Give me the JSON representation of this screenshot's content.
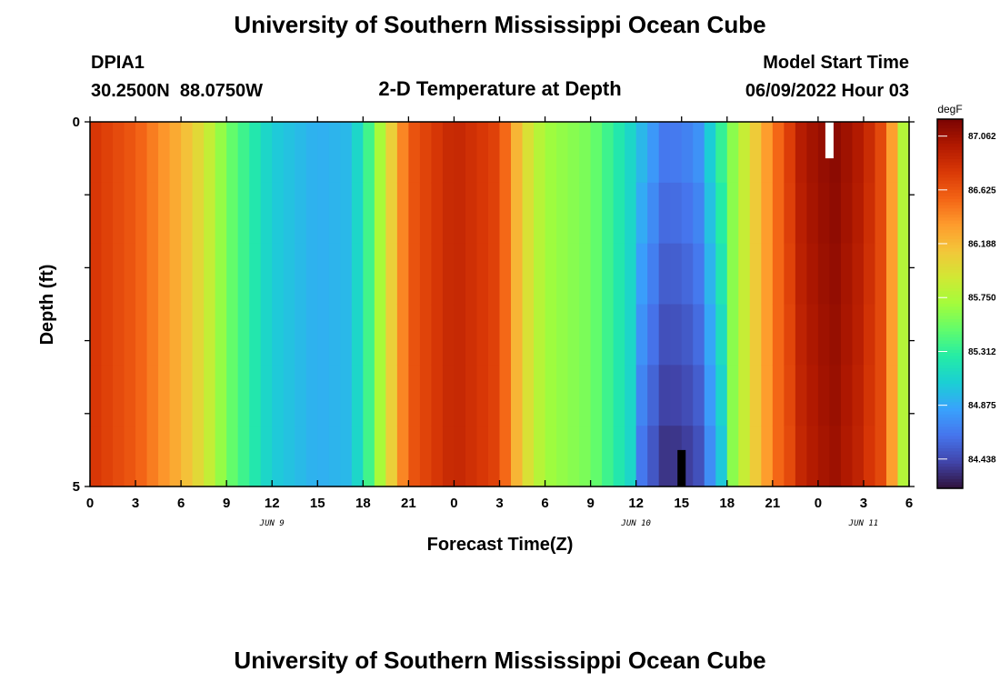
{
  "page": {
    "title": "University of Southern Mississippi Ocean Cube",
    "station_id": "DPIA1",
    "station_coords": "30.2500N  88.0750W",
    "model_start_label": "Model Start Time",
    "model_start_value": "06/09/2022 Hour 03",
    "second_panel_title": "University of Southern Mississippi Ocean Cube"
  },
  "chart_data": {
    "type": "heatmap",
    "title": "2-D Temperature at Depth",
    "xlabel": "Forecast Time(Z)",
    "ylabel": "Depth (ft)",
    "units": "degF",
    "x_hours": [
      0,
      54
    ],
    "y_depth": [
      0,
      5
    ],
    "x_tick_labels": [
      "0",
      "3",
      "6",
      "9",
      "12",
      "15",
      "18",
      "21",
      "0",
      "3",
      "6",
      "9",
      "12",
      "15",
      "18",
      "21",
      "0",
      "3",
      "6"
    ],
    "y_tick_labels": [
      "0",
      "5"
    ],
    "date_labels": [
      {
        "label": "JUN 9",
        "hour": 12
      },
      {
        "label": "JUN 10",
        "hour": 36
      },
      {
        "label": "JUN 11",
        "hour": 51
      }
    ],
    "colorbar": {
      "min": 84.2,
      "max": 87.2,
      "ticks": [
        "87.062",
        "86.625",
        "86.188",
        "85.750",
        "85.312",
        "84.875",
        "84.438"
      ],
      "colors": [
        "#30123b",
        "#4145ab",
        "#4675ed",
        "#39a2fc",
        "#1bcfd4",
        "#24eca6",
        "#61fc6c",
        "#a4fc3b",
        "#d1e834",
        "#f3c63a",
        "#fe9b2d",
        "#f36315",
        "#d93806",
        "#b11901",
        "#7a0402"
      ]
    },
    "surface_profile": [
      [
        0,
        86.8
      ],
      [
        3,
        86.6
      ],
      [
        6,
        86.22
      ],
      [
        7.5,
        85.95
      ],
      [
        9,
        85.55
      ],
      [
        12,
        85.05
      ],
      [
        15,
        84.9
      ],
      [
        17,
        84.95
      ],
      [
        18,
        85.2
      ],
      [
        19.5,
        85.9
      ],
      [
        21,
        86.6
      ],
      [
        24,
        86.9
      ],
      [
        27,
        86.7
      ],
      [
        28.5,
        86.05
      ],
      [
        30,
        85.7
      ],
      [
        33,
        85.55
      ],
      [
        36,
        85.05
      ],
      [
        38,
        84.65
      ],
      [
        40,
        84.75
      ],
      [
        42,
        85.5
      ],
      [
        44.5,
        86.3
      ],
      [
        47,
        87.0
      ],
      [
        49,
        87.15
      ],
      [
        51,
        86.95
      ],
      [
        52.5,
        86.6
      ],
      [
        54,
        85.5
      ]
    ],
    "depth_layers": 6,
    "depth_adjust": {
      "cool_window": {
        "start": 36,
        "end": 42,
        "delta_degF": -0.36
      },
      "warm_window": {
        "start": 46,
        "end": 52,
        "delta_degF": -0.08
      }
    },
    "missing_cells": [
      {
        "hour": 48.75,
        "depth": [
          0,
          0.5
        ],
        "color": "#ffffff"
      },
      {
        "hour": 39,
        "depth": [
          4.5,
          5
        ],
        "color": "#000000"
      }
    ]
  }
}
